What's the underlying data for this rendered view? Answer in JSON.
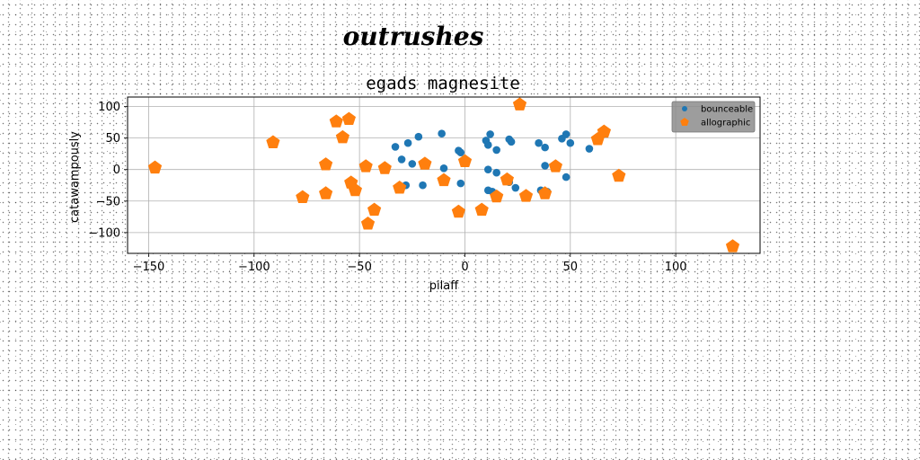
{
  "chart_data": {
    "type": "scatter",
    "suptitle": "outrushes",
    "title": "egads magnesite",
    "xlabel": "pilaff",
    "ylabel": "catawampously",
    "xlim": [
      -160,
      140
    ],
    "ylim": [
      -133,
      115
    ],
    "xticks": [
      -150,
      -100,
      -50,
      0,
      50,
      100
    ],
    "yticks": [
      -100,
      -50,
      0,
      50,
      100
    ],
    "grid": true,
    "legend": "top-right",
    "series": [
      {
        "name": "bounceable",
        "color": "#1f77b4",
        "marker": "circle",
        "points": [
          [
            -33,
            36
          ],
          [
            -27,
            42
          ],
          [
            -22,
            52
          ],
          [
            -30,
            16
          ],
          [
            -25,
            9
          ],
          [
            -20,
            10
          ],
          [
            -28,
            -25
          ],
          [
            -20,
            -25
          ],
          [
            -11,
            57
          ],
          [
            -10,
            2
          ],
          [
            -3,
            30
          ],
          [
            -2,
            27
          ],
          [
            -2,
            -22
          ],
          [
            0,
            15
          ],
          [
            10,
            46
          ],
          [
            11,
            39
          ],
          [
            12,
            56
          ],
          [
            15,
            31
          ],
          [
            11,
            0
          ],
          [
            15,
            -5
          ],
          [
            11,
            -33
          ],
          [
            13,
            -35
          ],
          [
            21,
            48
          ],
          [
            22,
            44
          ],
          [
            21,
            -20
          ],
          [
            24,
            -29
          ],
          [
            35,
            42
          ],
          [
            38,
            35
          ],
          [
            38,
            6
          ],
          [
            36,
            -33
          ],
          [
            39,
            -35
          ],
          [
            46,
            49
          ],
          [
            48,
            56
          ],
          [
            50,
            42
          ],
          [
            48,
            -12
          ],
          [
            59,
            33
          ]
        ]
      },
      {
        "name": "allographic",
        "color": "#ff7f0e",
        "marker": "pentagon",
        "points": [
          [
            -147,
            3
          ],
          [
            -91,
            43
          ],
          [
            -77,
            -44
          ],
          [
            -66,
            8
          ],
          [
            -66,
            -38
          ],
          [
            -61,
            76
          ],
          [
            -58,
            51
          ],
          [
            -55,
            80
          ],
          [
            -54,
            -21
          ],
          [
            -52,
            -33
          ],
          [
            -47,
            5
          ],
          [
            -46,
            -86
          ],
          [
            -43,
            -64
          ],
          [
            -38,
            2
          ],
          [
            -31,
            -29
          ],
          [
            -19,
            9
          ],
          [
            -10,
            -17
          ],
          [
            -3,
            -67
          ],
          [
            0,
            13
          ],
          [
            8,
            -64
          ],
          [
            15,
            -43
          ],
          [
            20,
            -16
          ],
          [
            26,
            103
          ],
          [
            29,
            -42
          ],
          [
            38,
            -38
          ],
          [
            43,
            5
          ],
          [
            63,
            48
          ],
          [
            66,
            60
          ],
          [
            73,
            -10
          ],
          [
            127,
            -122
          ]
        ]
      }
    ]
  }
}
